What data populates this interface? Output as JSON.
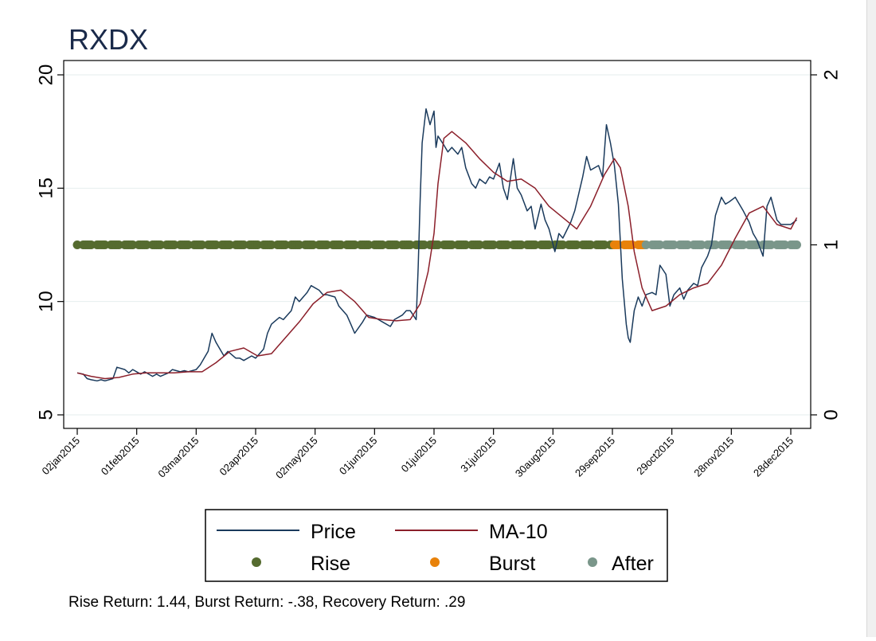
{
  "colors": {
    "title": "#1a2a4a",
    "price": "#1a3a5c",
    "ma": "#8b1f2a",
    "rise": "#556b2f",
    "burst": "#e8820a",
    "after": "#7a968a",
    "grid": "#e6eeee",
    "axis": "#000000"
  },
  "chart_data": {
    "type": "line",
    "title": "RXDX",
    "xlabel": "",
    "ylabel": "",
    "grid": true,
    "legend_position": "bottom",
    "x_ticks": [
      "02jan2015",
      "01feb2015",
      "03mar2015",
      "02apr2015",
      "02may2015",
      "01jun2015",
      "01jul2015",
      "31jul2015",
      "30aug2015",
      "29sep2015",
      "29oct2015",
      "28nov2015",
      "28dec2015"
    ],
    "y_ticks": [
      5,
      10,
      15,
      20
    ],
    "y_range": [
      5,
      20
    ],
    "y2_ticks": [
      0,
      1,
      2
    ],
    "y2_range": [
      0,
      2
    ],
    "x_range": [
      "2014-12-29",
      "2016-01-04"
    ],
    "series": [
      {
        "name": "Price",
        "axis": "left",
        "points": [
          [
            "2015-01-02",
            6.85
          ],
          [
            "2015-01-05",
            6.8
          ],
          [
            "2015-01-07",
            6.6
          ],
          [
            "2015-01-09",
            6.55
          ],
          [
            "2015-01-12",
            6.5
          ],
          [
            "2015-01-14",
            6.55
          ],
          [
            "2015-01-16",
            6.5
          ],
          [
            "2015-01-20",
            6.6
          ],
          [
            "2015-01-22",
            7.1
          ],
          [
            "2015-01-26",
            7.0
          ],
          [
            "2015-01-28",
            6.85
          ],
          [
            "2015-01-30",
            7.0
          ],
          [
            "2015-02-03",
            6.8
          ],
          [
            "2015-02-05",
            6.9
          ],
          [
            "2015-02-09",
            6.7
          ],
          [
            "2015-02-11",
            6.8
          ],
          [
            "2015-02-13",
            6.7
          ],
          [
            "2015-02-17",
            6.85
          ],
          [
            "2015-02-19",
            7.0
          ],
          [
            "2015-02-23",
            6.9
          ],
          [
            "2015-02-25",
            6.95
          ],
          [
            "2015-02-27",
            6.9
          ],
          [
            "2015-03-03",
            7.0
          ],
          [
            "2015-03-05",
            7.2
          ],
          [
            "2015-03-09",
            7.8
          ],
          [
            "2015-03-11",
            8.6
          ],
          [
            "2015-03-13",
            8.2
          ],
          [
            "2015-03-17",
            7.6
          ],
          [
            "2015-03-19",
            7.8
          ],
          [
            "2015-03-23",
            7.5
          ],
          [
            "2015-03-25",
            7.5
          ],
          [
            "2015-03-27",
            7.4
          ],
          [
            "2015-03-31",
            7.6
          ],
          [
            "2015-04-02",
            7.5
          ],
          [
            "2015-04-06",
            7.9
          ],
          [
            "2015-04-08",
            8.6
          ],
          [
            "2015-04-10",
            9.0
          ],
          [
            "2015-04-14",
            9.3
          ],
          [
            "2015-04-16",
            9.2
          ],
          [
            "2015-04-20",
            9.6
          ],
          [
            "2015-04-22",
            10.2
          ],
          [
            "2015-04-24",
            10.0
          ],
          [
            "2015-04-28",
            10.4
          ],
          [
            "2015-04-30",
            10.7
          ],
          [
            "2015-05-04",
            10.5
          ],
          [
            "2015-05-06",
            10.3
          ],
          [
            "2015-05-08",
            10.3
          ],
          [
            "2015-05-12",
            10.2
          ],
          [
            "2015-05-14",
            9.8
          ],
          [
            "2015-05-18",
            9.4
          ],
          [
            "2015-05-20",
            9.0
          ],
          [
            "2015-05-22",
            8.6
          ],
          [
            "2015-05-26",
            9.1
          ],
          [
            "2015-05-28",
            9.4
          ],
          [
            "2015-06-01",
            9.3
          ],
          [
            "2015-06-03",
            9.2
          ],
          [
            "2015-06-05",
            9.1
          ],
          [
            "2015-06-09",
            8.9
          ],
          [
            "2015-06-11",
            9.2
          ],
          [
            "2015-06-15",
            9.4
          ],
          [
            "2015-06-17",
            9.6
          ],
          [
            "2015-06-19",
            9.6
          ],
          [
            "2015-06-22",
            9.2
          ],
          [
            "2015-06-23",
            11.5
          ],
          [
            "2015-06-24",
            14.5
          ],
          [
            "2015-06-25",
            17.0
          ],
          [
            "2015-06-27",
            18.5
          ],
          [
            "2015-06-29",
            17.8
          ],
          [
            "2015-07-01",
            18.4
          ],
          [
            "2015-07-02",
            16.8
          ],
          [
            "2015-07-03",
            17.3
          ],
          [
            "2015-07-06",
            16.9
          ],
          [
            "2015-07-08",
            16.6
          ],
          [
            "2015-07-10",
            16.8
          ],
          [
            "2015-07-13",
            16.5
          ],
          [
            "2015-07-15",
            16.8
          ],
          [
            "2015-07-17",
            15.9
          ],
          [
            "2015-07-20",
            15.2
          ],
          [
            "2015-07-22",
            15.0
          ],
          [
            "2015-07-24",
            15.4
          ],
          [
            "2015-07-27",
            15.2
          ],
          [
            "2015-07-29",
            15.5
          ],
          [
            "2015-07-31",
            15.4
          ],
          [
            "2015-08-03",
            16.1
          ],
          [
            "2015-08-05",
            15.0
          ],
          [
            "2015-08-07",
            14.5
          ],
          [
            "2015-08-10",
            16.3
          ],
          [
            "2015-08-12",
            15.0
          ],
          [
            "2015-08-14",
            14.7
          ],
          [
            "2015-08-17",
            14.0
          ],
          [
            "2015-08-19",
            14.2
          ],
          [
            "2015-08-21",
            13.2
          ],
          [
            "2015-08-24",
            14.3
          ],
          [
            "2015-08-26",
            13.6
          ],
          [
            "2015-08-28",
            13.2
          ],
          [
            "2015-08-31",
            12.2
          ],
          [
            "2015-09-02",
            13.0
          ],
          [
            "2015-09-04",
            12.8
          ],
          [
            "2015-09-08",
            13.5
          ],
          [
            "2015-09-10",
            14.0
          ],
          [
            "2015-09-14",
            15.5
          ],
          [
            "2015-09-16",
            16.4
          ],
          [
            "2015-09-18",
            15.8
          ],
          [
            "2015-09-22",
            16.0
          ],
          [
            "2015-09-24",
            15.5
          ],
          [
            "2015-09-26",
            17.8
          ],
          [
            "2015-09-28",
            17.0
          ],
          [
            "2015-09-30",
            16.0
          ],
          [
            "2015-10-02",
            14.3
          ],
          [
            "2015-10-04",
            11.0
          ],
          [
            "2015-10-06",
            9.0
          ],
          [
            "2015-10-07",
            8.4
          ],
          [
            "2015-10-08",
            8.2
          ],
          [
            "2015-10-10",
            9.6
          ],
          [
            "2015-10-12",
            10.2
          ],
          [
            "2015-10-14",
            9.8
          ],
          [
            "2015-10-16",
            10.3
          ],
          [
            "2015-10-19",
            10.4
          ],
          [
            "2015-10-21",
            10.3
          ],
          [
            "2015-10-23",
            11.6
          ],
          [
            "2015-10-26",
            11.2
          ],
          [
            "2015-10-28",
            9.8
          ],
          [
            "2015-10-30",
            10.3
          ],
          [
            "2015-11-02",
            10.6
          ],
          [
            "2015-11-04",
            10.1
          ],
          [
            "2015-11-06",
            10.5
          ],
          [
            "2015-11-09",
            10.8
          ],
          [
            "2015-11-11",
            10.7
          ],
          [
            "2015-11-13",
            11.5
          ],
          [
            "2015-11-16",
            12.0
          ],
          [
            "2015-11-18",
            12.5
          ],
          [
            "2015-11-20",
            13.8
          ],
          [
            "2015-11-23",
            14.6
          ],
          [
            "2015-11-25",
            14.3
          ],
          [
            "2015-11-27",
            14.4
          ],
          [
            "2015-11-30",
            14.6
          ],
          [
            "2015-12-02",
            14.3
          ],
          [
            "2015-12-04",
            14.0
          ],
          [
            "2015-12-07",
            13.5
          ],
          [
            "2015-12-09",
            13.0
          ],
          [
            "2015-12-11",
            12.7
          ],
          [
            "2015-12-14",
            12.0
          ],
          [
            "2015-12-16",
            14.2
          ],
          [
            "2015-12-18",
            14.6
          ],
          [
            "2015-12-21",
            13.6
          ],
          [
            "2015-12-23",
            13.4
          ],
          [
            "2015-12-28",
            13.4
          ],
          [
            "2015-12-31",
            13.6
          ]
        ]
      },
      {
        "name": "MA-10",
        "axis": "left",
        "points": [
          [
            "2015-01-02",
            6.85
          ],
          [
            "2015-01-09",
            6.7
          ],
          [
            "2015-01-16",
            6.6
          ],
          [
            "2015-01-23",
            6.65
          ],
          [
            "2015-01-30",
            6.8
          ],
          [
            "2015-02-06",
            6.85
          ],
          [
            "2015-02-13",
            6.85
          ],
          [
            "2015-02-20",
            6.85
          ],
          [
            "2015-02-27",
            6.9
          ],
          [
            "2015-03-06",
            6.9
          ],
          [
            "2015-03-13",
            7.3
          ],
          [
            "2015-03-20",
            7.8
          ],
          [
            "2015-03-27",
            7.95
          ],
          [
            "2015-04-03",
            7.6
          ],
          [
            "2015-04-10",
            7.7
          ],
          [
            "2015-04-17",
            8.4
          ],
          [
            "2015-04-24",
            9.1
          ],
          [
            "2015-05-01",
            9.9
          ],
          [
            "2015-05-08",
            10.4
          ],
          [
            "2015-05-15",
            10.5
          ],
          [
            "2015-05-22",
            10.0
          ],
          [
            "2015-05-29",
            9.3
          ],
          [
            "2015-06-05",
            9.2
          ],
          [
            "2015-06-12",
            9.15
          ],
          [
            "2015-06-19",
            9.2
          ],
          [
            "2015-06-24",
            9.9
          ],
          [
            "2015-06-28",
            11.3
          ],
          [
            "2015-07-01",
            13.0
          ],
          [
            "2015-07-03",
            15.2
          ],
          [
            "2015-07-06",
            17.2
          ],
          [
            "2015-07-10",
            17.5
          ],
          [
            "2015-07-17",
            17.0
          ],
          [
            "2015-07-24",
            16.3
          ],
          [
            "2015-07-31",
            15.7
          ],
          [
            "2015-08-07",
            15.3
          ],
          [
            "2015-08-14",
            15.4
          ],
          [
            "2015-08-21",
            15.0
          ],
          [
            "2015-08-28",
            14.2
          ],
          [
            "2015-09-04",
            13.7
          ],
          [
            "2015-09-11",
            13.2
          ],
          [
            "2015-09-18",
            14.2
          ],
          [
            "2015-09-25",
            15.6
          ],
          [
            "2015-09-30",
            16.3
          ],
          [
            "2015-10-03",
            15.9
          ],
          [
            "2015-10-07",
            14.2
          ],
          [
            "2015-10-10",
            12.2
          ],
          [
            "2015-10-14",
            10.6
          ],
          [
            "2015-10-19",
            9.6
          ],
          [
            "2015-10-26",
            9.8
          ],
          [
            "2015-11-02",
            10.3
          ],
          [
            "2015-11-09",
            10.6
          ],
          [
            "2015-11-16",
            10.8
          ],
          [
            "2015-11-23",
            11.6
          ],
          [
            "2015-11-30",
            12.8
          ],
          [
            "2015-12-07",
            13.9
          ],
          [
            "2015-12-14",
            14.2
          ],
          [
            "2015-12-21",
            13.4
          ],
          [
            "2015-12-28",
            13.2
          ],
          [
            "2015-12-31",
            13.7
          ]
        ]
      },
      {
        "name": "Rise",
        "axis": "right",
        "y": 1,
        "start": "2015-01-02",
        "end": "2015-09-29"
      },
      {
        "name": "Burst",
        "axis": "right",
        "y": 1,
        "start": "2015-09-30",
        "end": "2015-10-15"
      },
      {
        "name": "After",
        "axis": "right",
        "y": 1,
        "start": "2015-10-16",
        "end": "2015-12-31"
      }
    ],
    "legend": {
      "price_label": "Price",
      "ma_label": "MA-10",
      "rise_label": "Rise",
      "burst_label": "Burst",
      "after_label": "After"
    },
    "note": "Rise Return: 1.44, Burst Return: -.38, Recovery Return: .29"
  }
}
